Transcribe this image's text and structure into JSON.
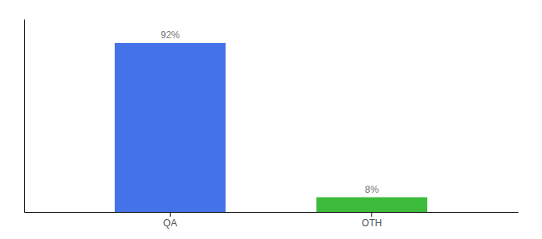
{
  "chart_data": {
    "type": "bar",
    "categories": [
      "QA",
      "OTH"
    ],
    "values": [
      92,
      8
    ],
    "colors": [
      "#4472e8",
      "#3dbb3d"
    ],
    "ylim": [
      0,
      105
    ],
    "data_labels": true,
    "value_labels": [
      "92%",
      "8%"
    ],
    "tick_labels": "x",
    "grid": false
  }
}
